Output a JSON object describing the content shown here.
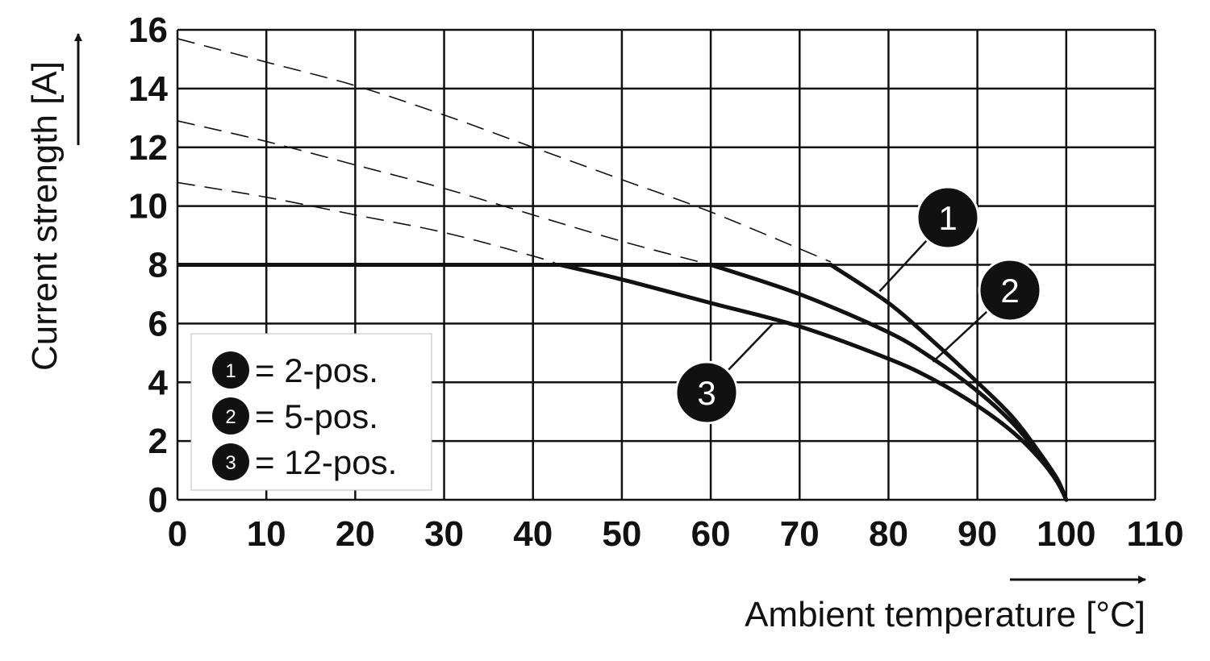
{
  "chart_data": {
    "type": "line",
    "xlabel": "Ambient temperature [°C]",
    "ylabel": "Current strength [A]",
    "xlim": [
      0,
      110
    ],
    "ylim": [
      0,
      16
    ],
    "x_ticks": [
      "0",
      "10",
      "20",
      "30",
      "40",
      "50",
      "60",
      "70",
      "80",
      "90",
      "100",
      "110"
    ],
    "y_ticks": [
      "0",
      "2",
      "4",
      "6",
      "8",
      "10",
      "12",
      "14",
      "16"
    ],
    "grid": true,
    "legend_position": "bottom-left",
    "colors": {
      "line": "#111111",
      "grid": "#111111",
      "background": "#ffffff"
    },
    "limit": {
      "name": "",
      "x": [
        0,
        73.5
      ],
      "y": [
        8,
        8
      ]
    },
    "series": [
      {
        "label": "1",
        "name": "2-pos.",
        "x": [
          73.5,
          80,
          85,
          90,
          94,
          97,
          99,
          100
        ],
        "y": [
          8.0,
          6.7,
          5.4,
          4.0,
          2.8,
          1.6,
          0.7,
          0
        ],
        "dashed_x": [
          0,
          10,
          20,
          30,
          40,
          50,
          60,
          73.5
        ],
        "dashed_y": [
          15.7,
          14.9,
          14.1,
          13.1,
          12.0,
          10.9,
          9.8,
          8.1
        ],
        "callout": {
          "x": 79,
          "y": 7.1
        }
      },
      {
        "label": "2",
        "name": "5-pos.",
        "x": [
          60,
          70,
          80,
          85,
          90,
          94,
          97,
          99,
          100
        ],
        "y": [
          8.0,
          7.0,
          5.7,
          4.8,
          3.7,
          2.6,
          1.5,
          0.6,
          0
        ],
        "dashed_x": [
          0,
          10,
          20,
          30,
          40,
          50,
          60
        ],
        "dashed_y": [
          12.9,
          12.2,
          11.4,
          10.6,
          9.7,
          8.8,
          8.0
        ],
        "callout": {
          "x": 85,
          "y": 4.7
        }
      },
      {
        "label": "3",
        "name": "12-pos.",
        "x": [
          43,
          50,
          60,
          70,
          80,
          85,
          90,
          94,
          97,
          99,
          100
        ],
        "y": [
          8.0,
          7.5,
          6.7,
          5.9,
          4.8,
          4.1,
          3.2,
          2.3,
          1.4,
          0.6,
          0
        ],
        "dashed_x": [
          0,
          10,
          20,
          30,
          40,
          43
        ],
        "dashed_y": [
          10.8,
          10.3,
          9.7,
          9.1,
          8.3,
          8.0
        ],
        "callout": {
          "x": 67,
          "y": 6.0
        }
      }
    ],
    "legend": [
      {
        "marker": "1",
        "text": "= 2-pos."
      },
      {
        "marker": "2",
        "text": "= 5-pos."
      },
      {
        "marker": "3",
        "text": "= 12-pos."
      }
    ]
  }
}
